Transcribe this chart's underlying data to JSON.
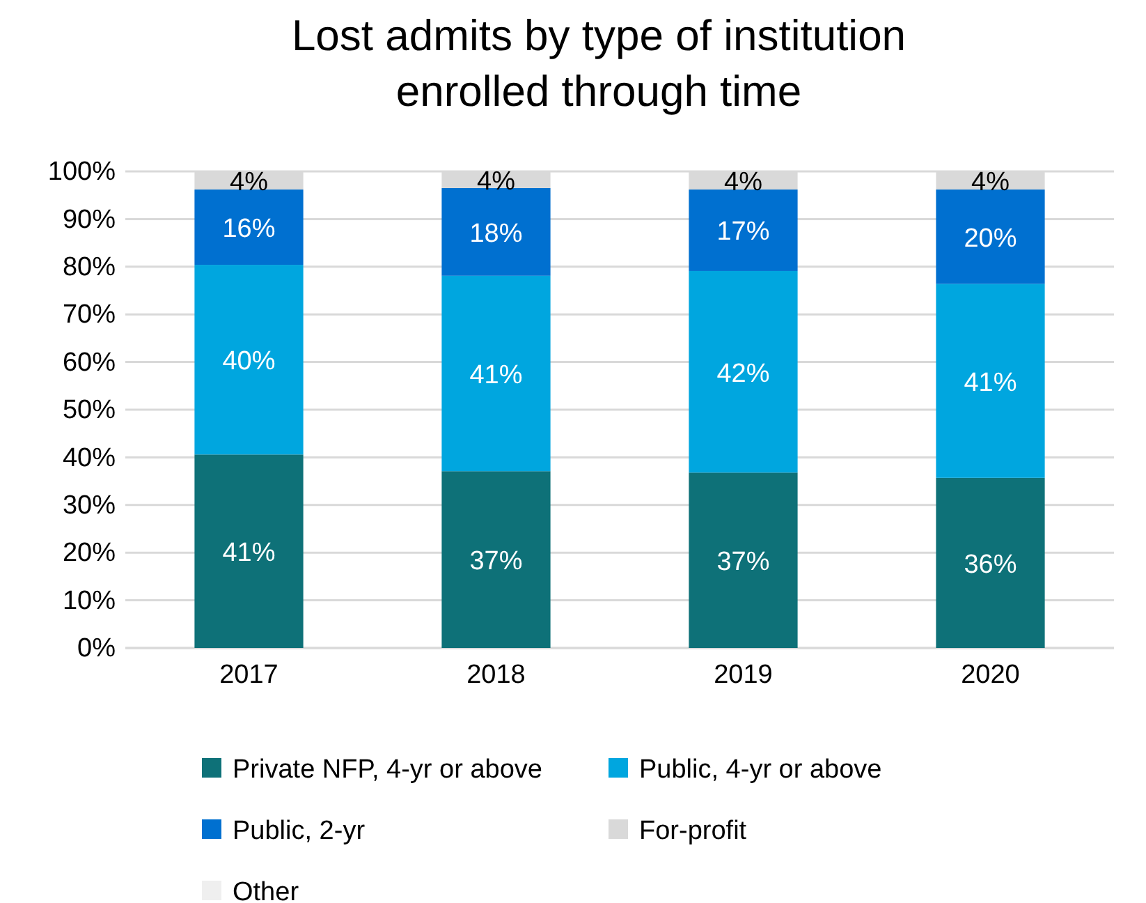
{
  "chart_data": {
    "type": "bar",
    "title": "Lost admits by type of institution enrolled through time",
    "categories": [
      "2017",
      "2018",
      "2019",
      "2020"
    ],
    "stacked": true,
    "ylim": [
      0,
      100
    ],
    "yticks": [
      {
        "value": 0,
        "label": "0%"
      },
      {
        "value": 10,
        "label": "10%"
      },
      {
        "value": 20,
        "label": "20%"
      },
      {
        "value": 30,
        "label": "30%"
      },
      {
        "value": 40,
        "label": "40%"
      },
      {
        "value": 50,
        "label": "50%"
      },
      {
        "value": 60,
        "label": "60%"
      },
      {
        "value": 70,
        "label": "70%"
      },
      {
        "value": 80,
        "label": "80%"
      },
      {
        "value": 90,
        "label": "90%"
      },
      {
        "value": 100,
        "label": "100%"
      }
    ],
    "grid": "y",
    "legend": "bottom",
    "series": [
      {
        "name": "Private NFP, 4-yr or above",
        "color": "#0e7178",
        "values": [
          40.6,
          37.1,
          36.8,
          35.7
        ],
        "value_labels": [
          "41%",
          "37%",
          "37%",
          "36%"
        ]
      },
      {
        "name": "Public, 4-yr or above",
        "color": "#00a6df",
        "values": [
          39.8,
          41.0,
          42.3,
          40.7
        ],
        "value_labels": [
          "40%",
          "41%",
          "42%",
          "41%"
        ]
      },
      {
        "name": "Public, 2-yr",
        "color": "#0070d0",
        "values": [
          15.8,
          18.4,
          17.1,
          19.8
        ],
        "value_labels": [
          "16%",
          "18%",
          "17%",
          "20%"
        ]
      },
      {
        "name": "For-profit",
        "color": "#d9d9d9",
        "values": [
          3.8,
          3.5,
          3.8,
          3.8
        ],
        "value_labels": [
          "4%",
          "4%",
          "4%",
          "4%"
        ]
      },
      {
        "name": "Other",
        "color": "#efefef",
        "values": [
          0,
          0,
          0,
          0
        ],
        "value_labels": [
          null,
          null,
          null,
          null
        ]
      }
    ]
  }
}
